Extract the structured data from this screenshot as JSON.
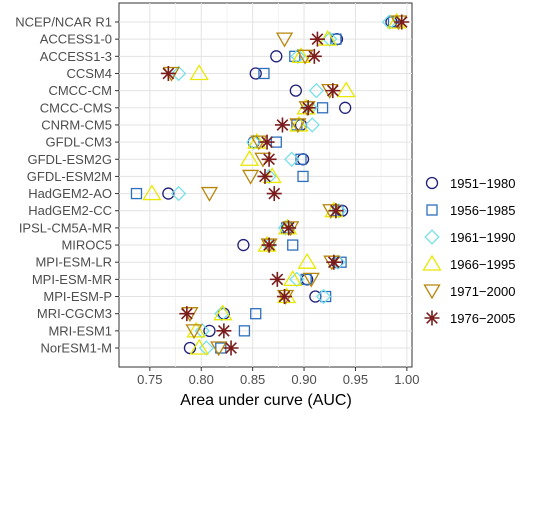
{
  "chart_data": {
    "type": "scatter",
    "title": "",
    "xlabel": "Area under curve (AUC)",
    "ylabel": "",
    "xlim": [
      0.72,
      1.005
    ],
    "xticks": [
      0.75,
      0.8,
      0.85,
      0.9,
      0.95,
      1.0
    ],
    "xtick_labels": [
      "0.75",
      "0.80",
      "0.85",
      "0.90",
      "0.95",
      "1.00"
    ],
    "grid": true,
    "legend_position": "right",
    "categories": [
      "NCEP/NCAR R1",
      "ACCESS1-0",
      "ACCESS1-3",
      "CCSM4",
      "CMCC-CM",
      "CMCC-CMS",
      "CNRM-CM5",
      "GFDL-CM3",
      "GFDL-ESM2G",
      "GFDL-ESM2M",
      "HadGEM2-AO",
      "HadGEM2-CC",
      "IPSL-CM5A-MR",
      "MIROC5",
      "MPI-ESM-LR",
      "MPI-ESM-MR",
      "MPI-ESM-P",
      "MRI-CGCM3",
      "MRI-ESM1",
      "NorESM1-M"
    ],
    "series": [
      {
        "name": "1951−1980",
        "marker": "circle",
        "color": "#1f1f7a",
        "values": [
          0.985,
          0.932,
          0.873,
          0.853,
          0.892,
          0.94,
          0.897,
          0.851,
          0.899,
          null,
          0.768,
          0.937,
          0.884,
          0.841,
          0.932,
          0.903,
          0.911,
          0.822,
          0.808,
          0.789
        ]
      },
      {
        "name": "1956−1985",
        "marker": "square",
        "color": "#2e6fbd",
        "values": [
          0.987,
          0.931,
          0.891,
          0.861,
          null,
          0.918,
          0.893,
          0.873,
          0.897,
          0.899,
          0.737,
          0.933,
          0.883,
          0.889,
          0.936,
          0.902,
          0.921,
          0.853,
          0.842,
          0.819
        ]
      },
      {
        "name": "1961−1990",
        "marker": "diamond",
        "color": "#79dfe8",
        "values": [
          0.983,
          0.925,
          0.894,
          0.778,
          0.912,
          0.906,
          0.908,
          0.851,
          0.888,
          0.866,
          0.778,
          0.934,
          0.882,
          0.866,
          0.933,
          0.893,
          0.919,
          0.82,
          0.801,
          0.805
        ]
      },
      {
        "name": "1966−1995",
        "marker": "triangle",
        "color": "#e8e800",
        "values": [
          0.99,
          0.923,
          0.897,
          0.798,
          0.941,
          0.902,
          0.895,
          0.854,
          0.847,
          0.869,
          0.752,
          0.929,
          0.884,
          0.864,
          0.903,
          0.889,
          0.883,
          0.821,
          0.795,
          0.798
        ]
      },
      {
        "name": "1971−2000",
        "marker": "triangle-down",
        "color": "#b8860b",
        "values": [
          0.992,
          0.881,
          0.901,
          0.771,
          0.925,
          0.903,
          0.894,
          0.856,
          0.86,
          0.848,
          0.808,
          0.926,
          0.887,
          0.866,
          0.927,
          0.907,
          0.882,
          0.789,
          0.793,
          0.817
        ]
      },
      {
        "name": "1976−2005",
        "marker": "asterisk",
        "color": "#7a1c1c",
        "values": [
          0.995,
          0.913,
          0.91,
          0.768,
          0.928,
          0.904,
          0.879,
          0.864,
          0.866,
          0.862,
          0.871,
          0.931,
          0.885,
          0.866,
          0.929,
          0.874,
          0.881,
          0.786,
          0.822,
          0.829
        ]
      }
    ]
  }
}
